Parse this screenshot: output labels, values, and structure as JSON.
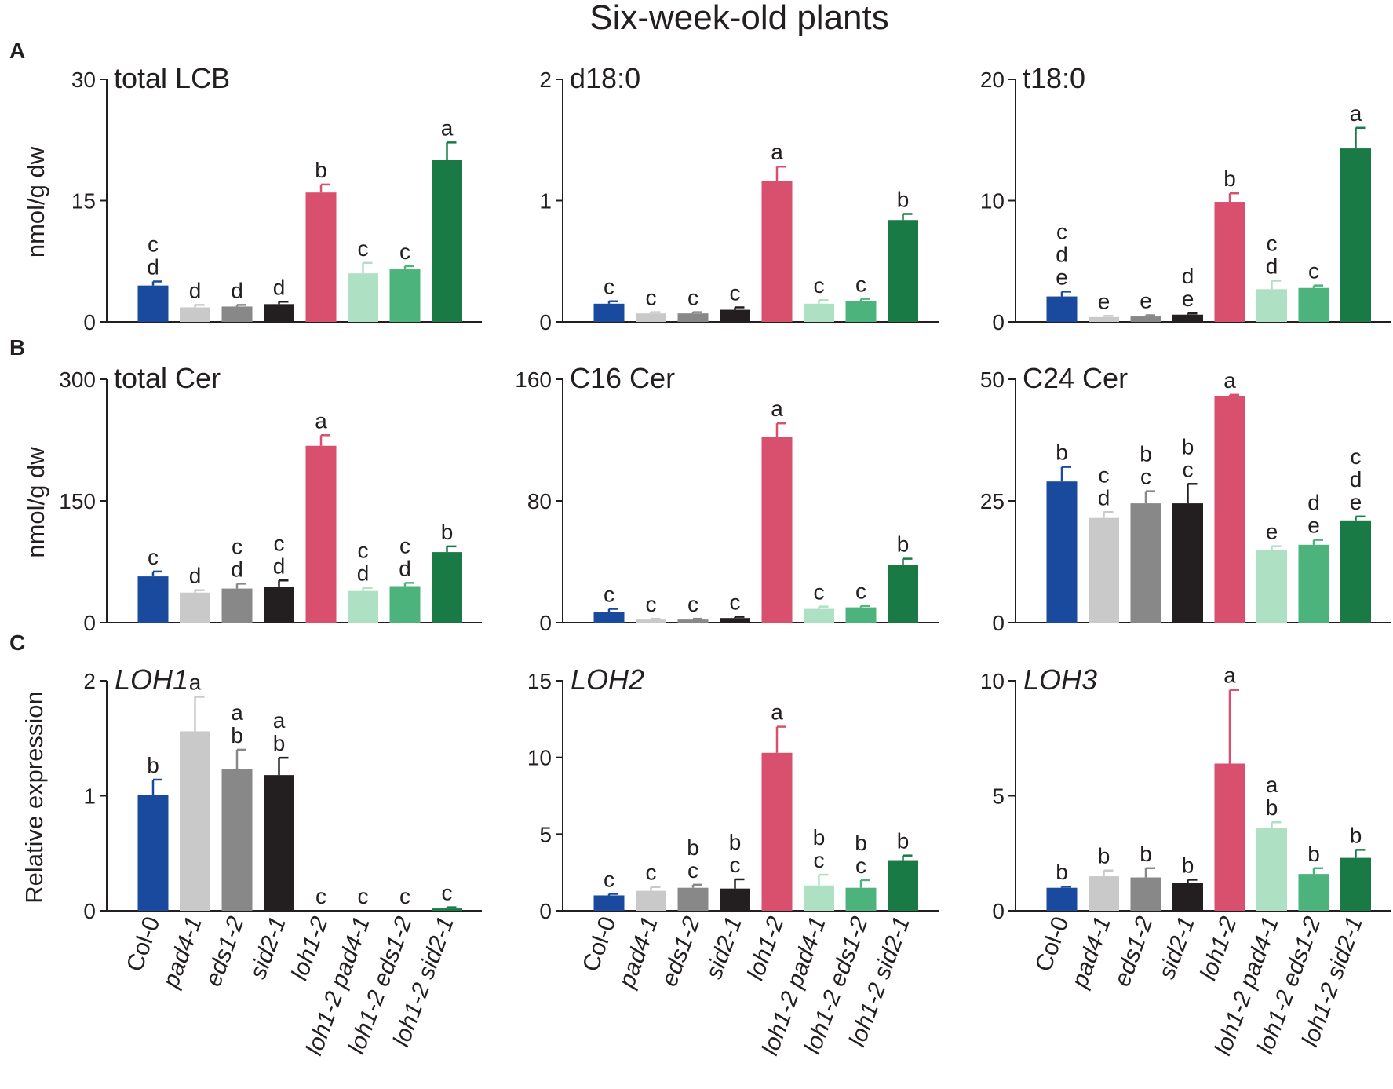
{
  "figure": {
    "title": "Six-week-old plants",
    "row_letters": [
      "A",
      "B",
      "C"
    ],
    "colors": [
      "#1a4a9e",
      "#c9c9c9",
      "#888888",
      "#231f20",
      "#d94f6e",
      "#aee0c4",
      "#4db37c",
      "#1a7a46"
    ]
  },
  "chart_data": [
    {
      "type": "bar",
      "row": 0,
      "col": 0,
      "title": "total LCB",
      "title_italic": false,
      "ylabel": "nmol/g dw",
      "ylim": [
        0,
        30
      ],
      "yticks": [
        "0",
        "15",
        "30"
      ],
      "ytick_values": [
        0,
        15,
        30
      ],
      "categories": [
        "Col-0",
        "pad4-1",
        "eds1-2",
        "sid2-1",
        "loh1-2",
        "loh1-2 pad4-1",
        "loh1-2 eds1-2",
        "loh1-2 sid2-1"
      ],
      "values": [
        4.5,
        1.8,
        1.9,
        2.2,
        16.0,
        6.0,
        6.5,
        20.0
      ],
      "errors": [
        0.5,
        0.3,
        0.2,
        0.3,
        1.0,
        1.3,
        0.4,
        2.2
      ],
      "letters": [
        "cd",
        "d",
        "d",
        "d",
        "b",
        "c",
        "c",
        "a"
      ]
    },
    {
      "type": "bar",
      "row": 0,
      "col": 1,
      "title": "d18:0",
      "title_italic": false,
      "ylabel": "",
      "ylim": [
        0,
        2
      ],
      "yticks": [
        "0",
        "1",
        "2"
      ],
      "ytick_values": [
        0,
        1,
        2
      ],
      "categories": [
        "Col-0",
        "pad4-1",
        "eds1-2",
        "sid2-1",
        "loh1-2",
        "loh1-2 pad4-1",
        "loh1-2 eds1-2",
        "loh1-2 sid2-1"
      ],
      "values": [
        0.15,
        0.07,
        0.07,
        0.1,
        1.16,
        0.15,
        0.17,
        0.84
      ],
      "errors": [
        0.02,
        0.01,
        0.01,
        0.02,
        0.12,
        0.03,
        0.02,
        0.05
      ],
      "letters": [
        "c",
        "c",
        "c",
        "c",
        "a",
        "c",
        "c",
        "b"
      ]
    },
    {
      "type": "bar",
      "row": 0,
      "col": 2,
      "title": "t18:0",
      "title_italic": false,
      "ylabel": "",
      "ylim": [
        0,
        20
      ],
      "yticks": [
        "0",
        "10",
        "20"
      ],
      "ytick_values": [
        0,
        10,
        20
      ],
      "categories": [
        "Col-0",
        "pad4-1",
        "eds1-2",
        "sid2-1",
        "loh1-2",
        "loh1-2 pad4-1",
        "loh1-2 eds1-2",
        "loh1-2 sid2-1"
      ],
      "values": [
        2.1,
        0.4,
        0.45,
        0.6,
        9.9,
        2.7,
        2.8,
        14.3
      ],
      "errors": [
        0.4,
        0.1,
        0.1,
        0.1,
        0.7,
        0.7,
        0.2,
        1.7
      ],
      "letters": [
        "cde",
        "e",
        "e",
        "de",
        "b",
        "cd",
        "c",
        "a"
      ]
    },
    {
      "type": "bar",
      "row": 1,
      "col": 0,
      "title": "total Cer",
      "title_italic": false,
      "ylabel": "nmol/g dw",
      "ylim": [
        0,
        300
      ],
      "yticks": [
        "0",
        "150",
        "300"
      ],
      "ytick_values": [
        0,
        150,
        300
      ],
      "categories": [
        "Col-0",
        "pad4-1",
        "eds1-2",
        "sid2-1",
        "loh1-2",
        "loh1-2 pad4-1",
        "loh1-2 eds1-2",
        "loh1-2 sid2-1"
      ],
      "values": [
        57,
        37,
        42,
        44,
        218,
        39,
        45,
        87
      ],
      "errors": [
        6,
        3,
        6,
        8,
        13,
        4,
        4,
        7
      ],
      "letters": [
        "c",
        "d",
        "cd",
        "cd",
        "a",
        "cd",
        "cd",
        "b"
      ]
    },
    {
      "type": "bar",
      "row": 1,
      "col": 1,
      "title": "C16 Cer",
      "title_italic": false,
      "ylabel": "",
      "ylim": [
        0,
        160
      ],
      "yticks": [
        "0",
        "80",
        "160"
      ],
      "ytick_values": [
        0,
        80,
        160
      ],
      "categories": [
        "Col-0",
        "pad4-1",
        "eds1-2",
        "sid2-1",
        "loh1-2",
        "loh1-2 pad4-1",
        "loh1-2 eds1-2",
        "loh1-2 sid2-1"
      ],
      "values": [
        7,
        2,
        2,
        3,
        122,
        9,
        10,
        38
      ],
      "errors": [
        2,
        0.5,
        0.5,
        0.8,
        9,
        1.5,
        1,
        4
      ],
      "letters": [
        "c",
        "c",
        "c",
        "c",
        "a",
        "c",
        "c",
        "b"
      ]
    },
    {
      "type": "bar",
      "row": 1,
      "col": 2,
      "title": "C24 Cer",
      "title_italic": false,
      "ylabel": "",
      "ylim": [
        0,
        50
      ],
      "yticks": [
        "0",
        "25",
        "50"
      ],
      "ytick_values": [
        0,
        25,
        50
      ],
      "categories": [
        "Col-0",
        "pad4-1",
        "eds1-2",
        "sid2-1",
        "loh1-2",
        "loh1-2 pad4-1",
        "loh1-2 eds1-2",
        "loh1-2 sid2-1"
      ],
      "values": [
        29,
        21.5,
        24.5,
        24.5,
        46.5,
        15,
        16,
        21
      ],
      "errors": [
        3,
        1.2,
        2.5,
        4,
        0.3,
        0.7,
        1,
        0.8
      ],
      "letters": [
        "b",
        "cd",
        "bc",
        "bc",
        "a",
        "e",
        "de",
        "cde"
      ]
    },
    {
      "type": "bar",
      "row": 2,
      "col": 0,
      "title": "LOH1",
      "title_italic": true,
      "ylabel": "Relative expression",
      "ylim": [
        0,
        2
      ],
      "yticks": [
        "0",
        "1",
        "2"
      ],
      "ytick_values": [
        0,
        1,
        2
      ],
      "categories": [
        "Col-0",
        "pad4-1",
        "eds1-2",
        "sid2-1",
        "loh1-2",
        "loh1-2 pad4-1",
        "loh1-2 eds1-2",
        "loh1-2 sid2-1"
      ],
      "values": [
        1.01,
        1.56,
        1.23,
        1.18,
        0,
        0,
        0,
        0.02
      ],
      "errors": [
        0.13,
        0.3,
        0.17,
        0.15,
        0,
        0,
        0,
        0.01
      ],
      "letters": [
        "b",
        "a",
        "ab",
        "ab",
        "c",
        "c",
        "c",
        "c"
      ]
    },
    {
      "type": "bar",
      "row": 2,
      "col": 1,
      "title": "LOH2",
      "title_italic": true,
      "ylabel": "",
      "ylim": [
        0,
        15
      ],
      "yticks": [
        "0",
        "5",
        "10",
        "15"
      ],
      "ytick_values": [
        0,
        5,
        10,
        15
      ],
      "categories": [
        "Col-0",
        "pad4-1",
        "eds1-2",
        "sid2-1",
        "loh1-2",
        "loh1-2 pad4-1",
        "loh1-2 eds1-2",
        "loh1-2 sid2-1"
      ],
      "values": [
        1.0,
        1.3,
        1.5,
        1.45,
        10.3,
        1.65,
        1.5,
        3.3
      ],
      "errors": [
        0.1,
        0.25,
        0.2,
        0.6,
        1.7,
        0.7,
        0.5,
        0.3
      ],
      "letters": [
        "c",
        "c",
        "bc",
        "bc",
        "a",
        "bc",
        "bc",
        "b"
      ]
    },
    {
      "type": "bar",
      "row": 2,
      "col": 2,
      "title": "LOH3",
      "title_italic": true,
      "ylabel": "",
      "ylim": [
        0,
        10
      ],
      "yticks": [
        "0",
        "5",
        "10"
      ],
      "ytick_values": [
        0,
        5,
        10
      ],
      "categories": [
        "Col-0",
        "pad4-1",
        "eds1-2",
        "sid2-1",
        "loh1-2",
        "loh1-2 pad4-1",
        "loh1-2 eds1-2",
        "loh1-2 sid2-1"
      ],
      "values": [
        1.0,
        1.5,
        1.45,
        1.2,
        6.4,
        3.6,
        1.6,
        2.3
      ],
      "errors": [
        0.05,
        0.25,
        0.4,
        0.15,
        3.2,
        0.25,
        0.25,
        0.35
      ],
      "letters": [
        "b",
        "b",
        "b",
        "b",
        "a",
        "ab",
        "b",
        "b"
      ]
    }
  ],
  "x_axis": {
    "categories": [
      "Col-0",
      "pad4-1",
      "eds1-2",
      "sid2-1",
      "loh1-2",
      "loh1-2 pad4-1",
      "loh1-2 eds1-2",
      "loh1-2 sid2-1"
    ],
    "italic": [
      false,
      true,
      true,
      true,
      true,
      true,
      true,
      true
    ]
  }
}
